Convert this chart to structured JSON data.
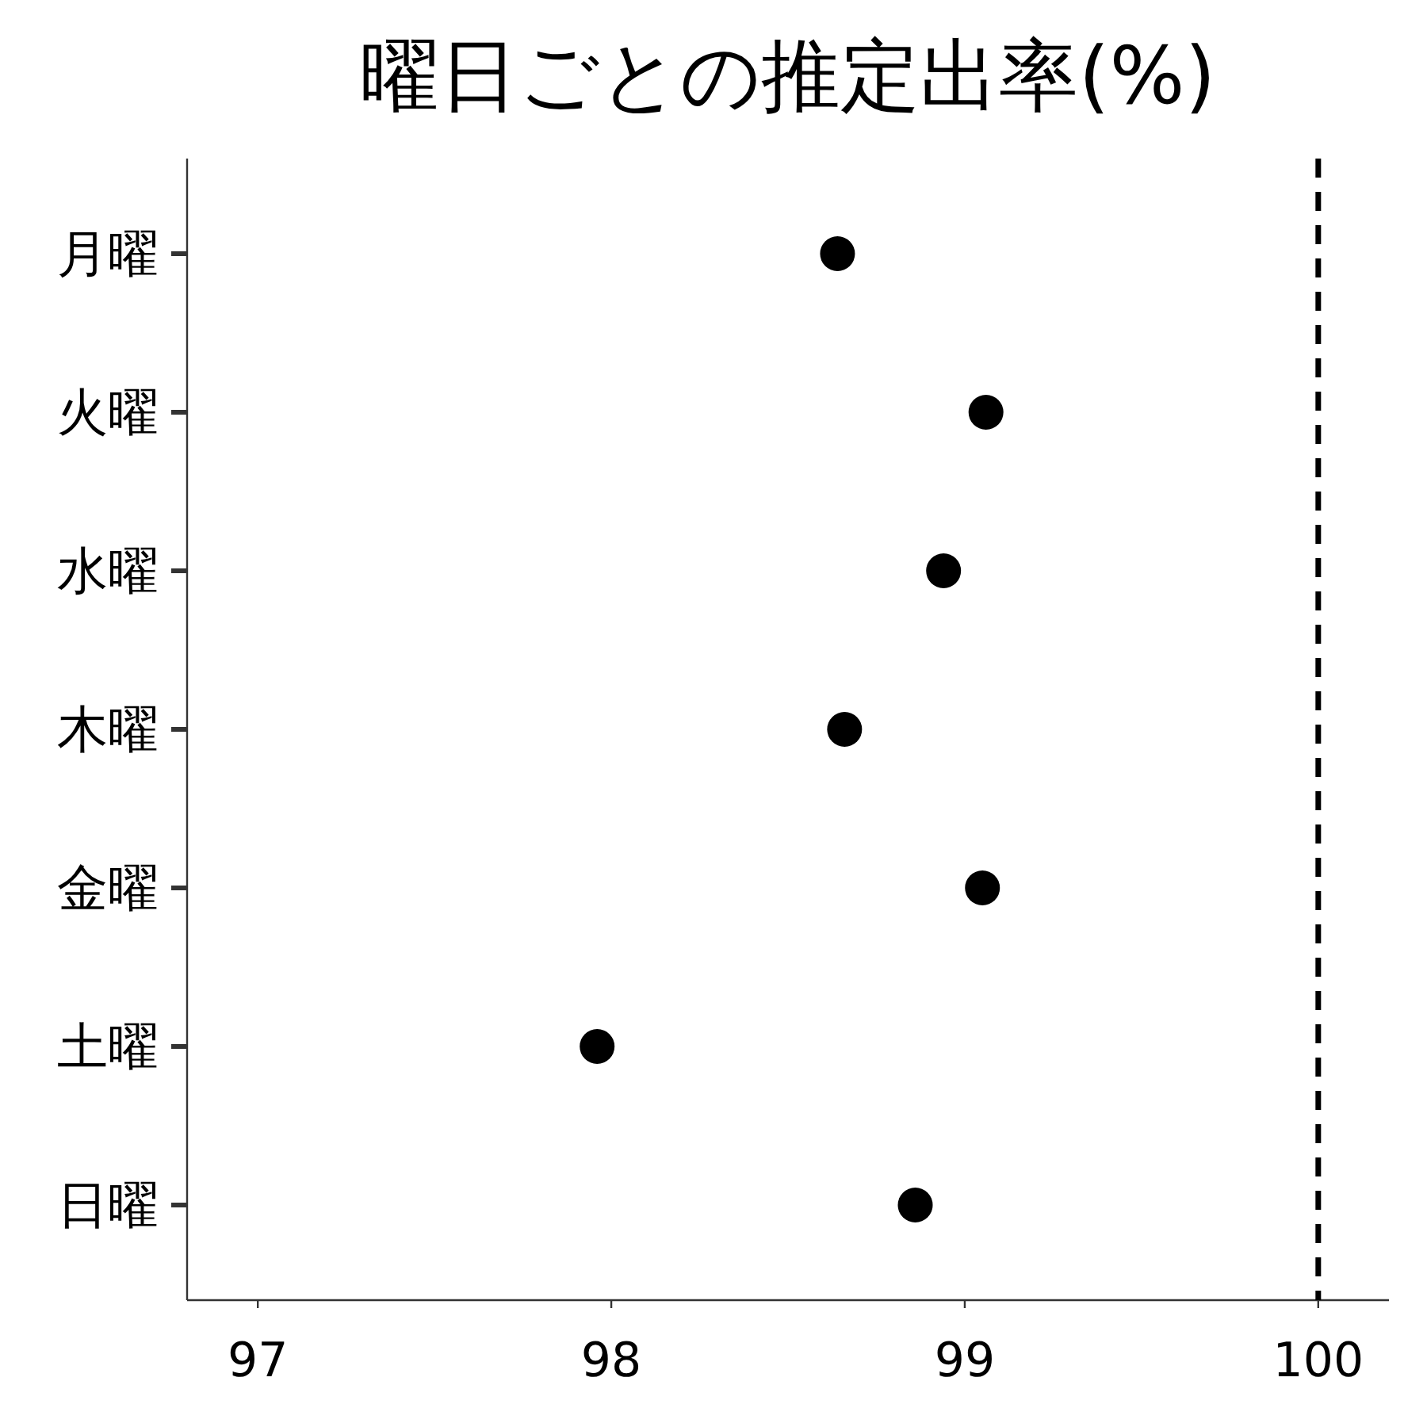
{
  "chart_data": {
    "type": "scatter",
    "title": "曜日ごとの推定出率(%)",
    "orientation": "horizontal",
    "categories": [
      "月曜",
      "火曜",
      "水曜",
      "木曜",
      "金曜",
      "土曜",
      "日曜"
    ],
    "series": [
      {
        "color": "#000000",
        "values": [
          98.64,
          99.06,
          98.94,
          98.66,
          99.05,
          97.96,
          98.86
        ]
      }
    ],
    "marker": "circle",
    "xlim": [
      96.8,
      100.2
    ],
    "xticks": [
      97,
      98,
      99,
      100
    ],
    "ref_lines": [
      {
        "axis": "x",
        "value": 100,
        "color": "#000000",
        "line_style": "dashed"
      }
    ],
    "grid": false
  }
}
